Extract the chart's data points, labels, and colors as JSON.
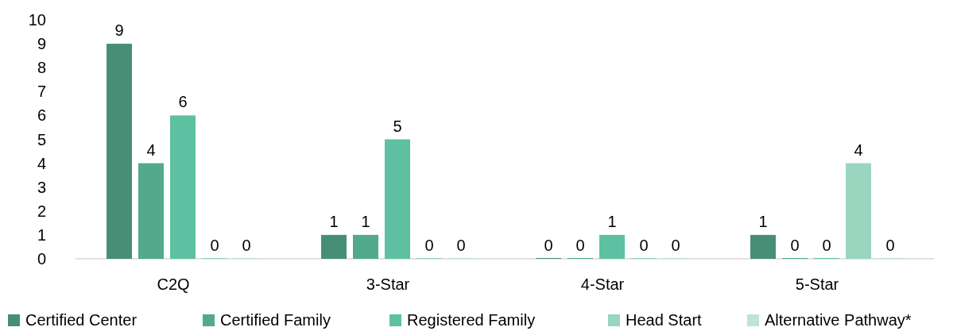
{
  "chart_data": {
    "type": "bar",
    "categories": [
      "C2Q",
      "3-Star",
      "4-Star",
      "5-Star"
    ],
    "series": [
      {
        "name": "Certified Center",
        "color": "#468f76",
        "values": [
          9,
          1,
          0,
          1
        ]
      },
      {
        "name": "Certified Family",
        "color": "#52a98b",
        "values": [
          4,
          1,
          0,
          0
        ]
      },
      {
        "name": "Registered Family",
        "color": "#5dc1a1",
        "values": [
          6,
          5,
          1,
          0
        ]
      },
      {
        "name": "Head Start",
        "color": "#99d5bf",
        "values": [
          0,
          0,
          0,
          4
        ]
      },
      {
        "name": "Alternative Pathway*",
        "color": "#bfe3d5",
        "values": [
          0,
          0,
          0,
          0
        ]
      }
    ],
    "ylim": [
      0,
      10
    ],
    "yticks": [
      0,
      1,
      2,
      3,
      4,
      5,
      6,
      7,
      8,
      9,
      10
    ],
    "grid": false,
    "data_labels": true,
    "legend": "bottom"
  }
}
